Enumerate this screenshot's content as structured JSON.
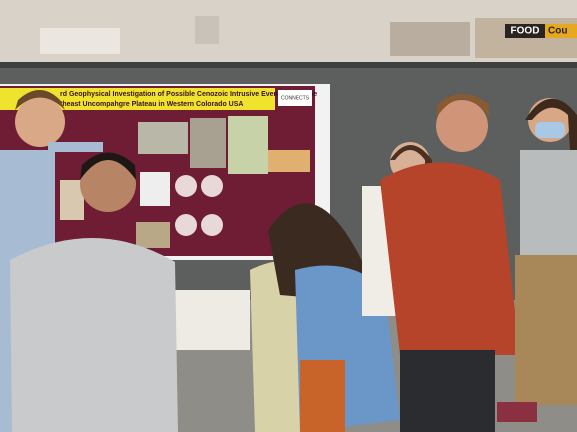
{
  "poster": {
    "title_line_1": "rd Geophysical Investigation of Possible Cenozoic Intrusive Events along the",
    "title_line_2": "theast Uncompahgre Plateau in Western Colorado USA",
    "logo": "CONNECTS"
  },
  "signs": {
    "food": "FOOD",
    "partial": "Cou"
  }
}
